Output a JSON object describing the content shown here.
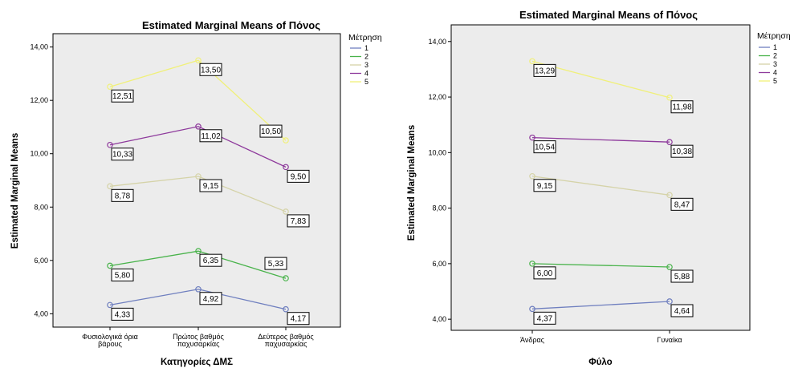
{
  "colors": {
    "plot_bg": "#ececec",
    "series": [
      "#6f7fbf",
      "#49b34b",
      "#d5d3a8",
      "#8e3a9c",
      "#f0f07a"
    ]
  },
  "chart_data": [
    {
      "type": "line",
      "title": "Estimated Marginal Means of Πόνος",
      "xlabel": "Κατηγορίες ΔΜΣ",
      "ylabel": "Estimated Marginal Means",
      "categories": [
        [
          "Φυσιολογικά όρια",
          "βάρους"
        ],
        [
          "Πρώτος βαθμός",
          "παχυσαρκίας"
        ],
        [
          "Δεύτερος βαθμός",
          "παχυσαρκίας"
        ]
      ],
      "ylim": [
        3.5,
        14.5
      ],
      "yticks": [
        "4,00",
        "6,00",
        "8,00",
        "10,00",
        "12,00",
        "14,00"
      ],
      "ytick_values": [
        4,
        6,
        8,
        10,
        12,
        14
      ],
      "legend_title": "Μέτρηση",
      "legend_position": "right",
      "series": [
        {
          "name": "1",
          "values": [
            4.33,
            4.92,
            4.17
          ],
          "labels": [
            "4,33",
            "4,92",
            "4,17"
          ]
        },
        {
          "name": "2",
          "values": [
            5.8,
            6.35,
            5.33
          ],
          "labels": [
            "5,80",
            "6,35",
            "5,33"
          ]
        },
        {
          "name": "3",
          "values": [
            8.78,
            9.15,
            7.83
          ],
          "labels": [
            "8,78",
            "9,15",
            "7,83"
          ]
        },
        {
          "name": "4",
          "values": [
            10.33,
            11.02,
            9.5
          ],
          "labels": [
            "10,33",
            "11,02",
            "9,50"
          ]
        },
        {
          "name": "5",
          "values": [
            12.51,
            13.5,
            10.5
          ],
          "labels": [
            "12,51",
            "13,50",
            "10,50"
          ]
        }
      ]
    },
    {
      "type": "line",
      "title": "Estimated Marginal Means of Πόνος",
      "xlabel": "Φύλο",
      "ylabel": "Estimated Marginal Means",
      "categories": [
        [
          "Άνδρας"
        ],
        [
          "Γυναίκα"
        ]
      ],
      "ylim": [
        3.6,
        14.6
      ],
      "yticks": [
        "4,00",
        "6,00",
        "8,00",
        "10,00",
        "12,00",
        "14,00"
      ],
      "ytick_values": [
        4,
        6,
        8,
        10,
        12,
        14
      ],
      "legend_title": "Μέτρηση",
      "legend_position": "right",
      "series": [
        {
          "name": "1",
          "values": [
            4.37,
            4.64
          ],
          "labels": [
            "4,37",
            "4,64"
          ]
        },
        {
          "name": "2",
          "values": [
            6.0,
            5.88
          ],
          "labels": [
            "6,00",
            "5,88"
          ]
        },
        {
          "name": "3",
          "values": [
            9.15,
            8.47
          ],
          "labels": [
            "9,15",
            "8,47"
          ]
        },
        {
          "name": "4",
          "values": [
            10.54,
            10.38
          ],
          "labels": [
            "10,54",
            "10,38"
          ]
        },
        {
          "name": "5",
          "values": [
            13.29,
            11.98
          ],
          "labels": [
            "13,29",
            "11,98"
          ]
        }
      ]
    }
  ]
}
